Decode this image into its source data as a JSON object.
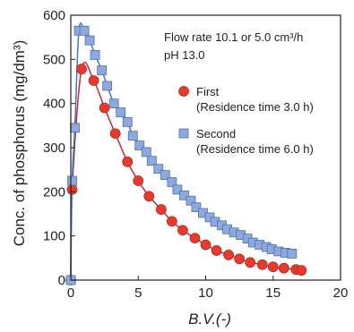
{
  "chart_data": {
    "type": "scatter",
    "title": "",
    "xlabel": "B.V.(-)",
    "ylabel": "Conc. of phosphorus (mg/dm³)",
    "xlim": [
      0,
      20
    ],
    "ylim": [
      0,
      600
    ],
    "x_ticks": [
      0,
      5,
      10,
      15,
      20
    ],
    "y_ticks": [
      0,
      100,
      200,
      300,
      400,
      500,
      600
    ],
    "grid": false,
    "legend_position": "right",
    "notes": [
      "Flow rate 10.1 or 5.0 cm³/h",
      "pH 13.0"
    ],
    "series": [
      {
        "name": "First",
        "name_sub": "(Residence time 3.0 h)",
        "marker": "circle",
        "color": "#e53b2c",
        "line_color": "#c6283f",
        "x": [
          0.0,
          0.1,
          0.8,
          1.7,
          2.5,
          3.3,
          4.2,
          5.0,
          5.8,
          6.7,
          7.5,
          8.3,
          9.2,
          10.0,
          10.8,
          11.7,
          12.5,
          13.3,
          14.2,
          15.0,
          15.8,
          16.7,
          17.1
        ],
        "y": [
          0,
          205,
          478,
          452,
          390,
          332,
          268,
          225,
          190,
          160,
          133,
          113,
          95,
          80,
          67,
          57,
          48,
          40,
          35,
          30,
          27,
          24,
          22
        ]
      },
      {
        "name": "Second",
        "name_sub": "(Residence time 6.0 h)",
        "marker": "square",
        "color": "#6c8fd3",
        "line_color": "#3f79b8",
        "x": [
          0.0,
          0.1,
          0.3,
          0.6,
          1.0,
          1.4,
          1.8,
          2.3,
          2.7,
          3.2,
          3.7,
          4.2,
          4.6,
          5.1,
          5.6,
          6.0,
          6.5,
          7.0,
          7.5,
          7.9,
          8.4,
          8.9,
          9.3,
          9.8,
          10.3,
          10.7,
          11.2,
          11.6,
          12.1,
          12.6,
          13.1,
          13.5,
          14.0,
          14.5,
          14.9,
          15.4,
          15.9,
          16.4
        ],
        "y": [
          0,
          225,
          345,
          565,
          565,
          543,
          510,
          475,
          440,
          400,
          380,
          358,
          327,
          305,
          290,
          270,
          252,
          238,
          222,
          205,
          192,
          180,
          165,
          152,
          142,
          132,
          124,
          115,
          108,
          102,
          94,
          85,
          80,
          75,
          70,
          65,
          62,
          60
        ]
      }
    ]
  }
}
